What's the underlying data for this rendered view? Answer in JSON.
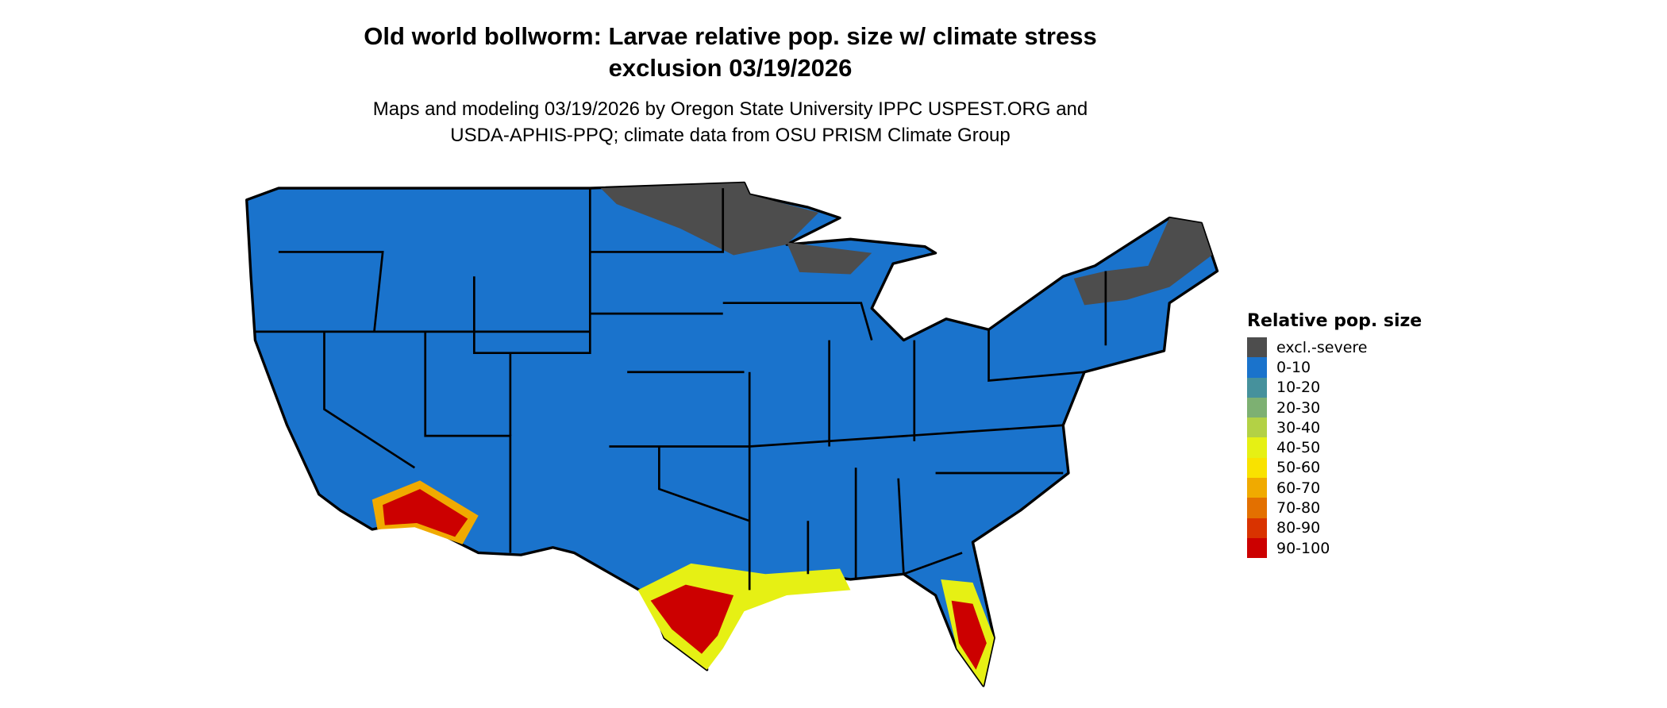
{
  "title_line1": "Old world bollworm: Larvae relative pop. size w/ climate stress",
  "title_line2": "exclusion 03/19/2026",
  "subtitle_line1": "Maps and modeling 03/19/2026 by Oregon State University IPPC USPEST.ORG and",
  "subtitle_line2": "USDA-APHIS-PPQ; climate data from OSU PRISM Climate Group",
  "legend": {
    "title": "Relative pop. size",
    "items": [
      {
        "label": "excl.-severe",
        "color": "#4d4d4d"
      },
      {
        "label": "0-10",
        "color": "#1a73cc"
      },
      {
        "label": "10-20",
        "color": "#46919c"
      },
      {
        "label": "20-30",
        "color": "#7db072"
      },
      {
        "label": "30-40",
        "color": "#b3d145"
      },
      {
        "label": "40-50",
        "color": "#e6f014"
      },
      {
        "label": "50-60",
        "color": "#f9e200"
      },
      {
        "label": "60-70",
        "color": "#f0aa00"
      },
      {
        "label": "70-80",
        "color": "#e37000"
      },
      {
        "label": "80-90",
        "color": "#d93300"
      },
      {
        "label": "90-100",
        "color": "#cc0000"
      }
    ]
  }
}
